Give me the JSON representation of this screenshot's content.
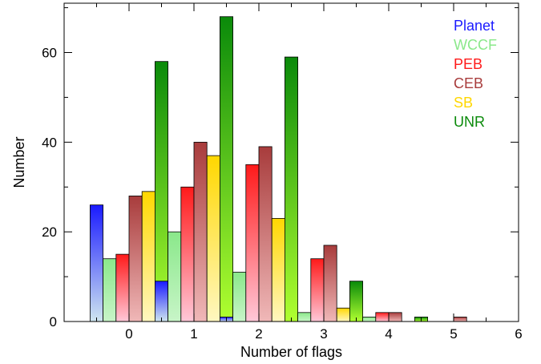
{
  "chart_data": {
    "type": "bar",
    "title": "",
    "xlabel": "Number of flags",
    "ylabel": "Number",
    "xlim": [
      -1,
      6
    ],
    "ylim": [
      0,
      71
    ],
    "x_ticks": [
      "0",
      "1",
      "2",
      "3",
      "4",
      "5",
      "6"
    ],
    "y_ticks": [
      "0",
      "20",
      "40",
      "60"
    ],
    "categories": [
      "0",
      "1",
      "2",
      "3",
      "4",
      "5"
    ],
    "legend_position": "top-right",
    "grid": false,
    "series": [
      {
        "name": "Planet",
        "color": "#1a1aff",
        "values": [
          26,
          9,
          1,
          0,
          0,
          0
        ]
      },
      {
        "name": "WCCF",
        "color": "#8ae88a",
        "values": [
          14,
          20,
          11,
          2,
          1,
          0
        ]
      },
      {
        "name": "PEB",
        "color": "#ff1a1a",
        "values": [
          15,
          30,
          35,
          14,
          2,
          0
        ]
      },
      {
        "name": "CEB",
        "color": "#a83c3c",
        "values": [
          28,
          40,
          39,
          17,
          2,
          1
        ]
      },
      {
        "name": "SB",
        "color": "#ffd700",
        "values": [
          29,
          37,
          23,
          3,
          0,
          0
        ]
      },
      {
        "name": "UNR",
        "color": "#0a8a0a",
        "values": [
          58,
          68,
          59,
          9,
          1,
          0
        ]
      }
    ]
  }
}
